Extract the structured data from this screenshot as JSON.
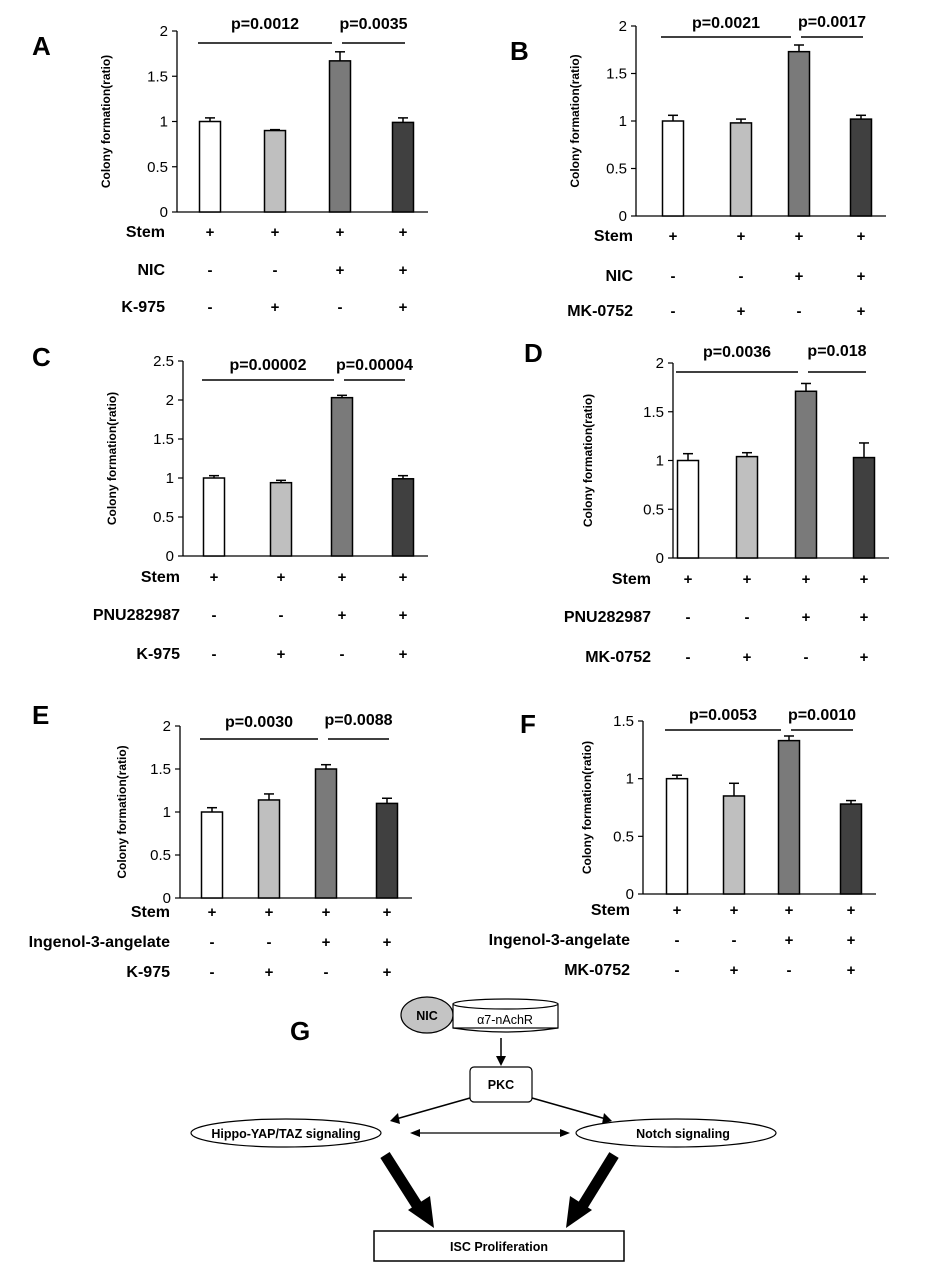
{
  "chart_data": [
    {
      "panel": "A",
      "type": "bar",
      "ylabel": "Colony formation(ratio)",
      "ylim": [
        0,
        2
      ],
      "yticks": [
        "0",
        "0.5",
        "1",
        "1.5",
        "2"
      ],
      "values": [
        1.0,
        0.9,
        1.67,
        0.99
      ],
      "errors": [
        0.04,
        0.01,
        0.1,
        0.05
      ],
      "bar_colors": [
        "#ffffff",
        "#bfbfbf",
        "#7a7a7a",
        "#404040"
      ],
      "pvalues": [
        "p=0.0012",
        "p=0.0035"
      ],
      "conditions": [
        {
          "label": "Stem",
          "signs": [
            "+",
            "+",
            "+",
            "+"
          ]
        },
        {
          "label": "NIC",
          "signs": [
            "-",
            "-",
            "+",
            "+"
          ]
        },
        {
          "label": "K-975",
          "signs": [
            "-",
            "+",
            "-",
            "+"
          ]
        }
      ]
    },
    {
      "panel": "B",
      "type": "bar",
      "ylabel": "Colony formation(ratio)",
      "ylim": [
        0,
        2
      ],
      "yticks": [
        "0",
        "0.5",
        "1",
        "1.5",
        "2"
      ],
      "values": [
        1.0,
        0.98,
        1.73,
        1.02
      ],
      "errors": [
        0.06,
        0.04,
        0.07,
        0.04
      ],
      "bar_colors": [
        "#ffffff",
        "#bfbfbf",
        "#7a7a7a",
        "#404040"
      ],
      "pvalues": [
        "p=0.0021",
        "p=0.0017"
      ],
      "conditions": [
        {
          "label": "Stem",
          "signs": [
            "+",
            "+",
            "+",
            "+"
          ]
        },
        {
          "label": "NIC",
          "signs": [
            "-",
            "-",
            "+",
            "+"
          ]
        },
        {
          "label": "MK-0752",
          "signs": [
            "-",
            "+",
            "-",
            "+"
          ]
        }
      ]
    },
    {
      "panel": "C",
      "type": "bar",
      "ylabel": "Colony formation(ratio)",
      "ylim": [
        0,
        2.5
      ],
      "yticks": [
        "0",
        "0.5",
        "1",
        "1.5",
        "2",
        "2.5"
      ],
      "values": [
        1.0,
        0.94,
        2.03,
        0.99
      ],
      "errors": [
        0.03,
        0.03,
        0.03,
        0.04
      ],
      "bar_colors": [
        "#ffffff",
        "#bfbfbf",
        "#7a7a7a",
        "#404040"
      ],
      "pvalues": [
        "p=0.00002",
        "p=0.00004"
      ],
      "conditions": [
        {
          "label": "Stem",
          "signs": [
            "+",
            "+",
            "+",
            "+"
          ]
        },
        {
          "label": "PNU282987",
          "signs": [
            "-",
            "-",
            "+",
            "+"
          ]
        },
        {
          "label": "K-975",
          "signs": [
            "-",
            "+",
            "-",
            "+"
          ]
        }
      ]
    },
    {
      "panel": "D",
      "type": "bar",
      "ylabel": "Colony formation(ratio)",
      "ylim": [
        0,
        2
      ],
      "yticks": [
        "0",
        "0.5",
        "1",
        "1.5",
        "2"
      ],
      "values": [
        1.0,
        1.04,
        1.71,
        1.03
      ],
      "errors": [
        0.07,
        0.04,
        0.08,
        0.15
      ],
      "bar_colors": [
        "#ffffff",
        "#bfbfbf",
        "#7a7a7a",
        "#404040"
      ],
      "pvalues": [
        "p=0.0036",
        "p=0.018"
      ],
      "conditions": [
        {
          "label": "Stem",
          "signs": [
            "+",
            "+",
            "+",
            "+"
          ]
        },
        {
          "label": "PNU282987",
          "signs": [
            "-",
            "-",
            "+",
            "+"
          ]
        },
        {
          "label": "MK-0752",
          "signs": [
            "-",
            "+",
            "-",
            "+"
          ]
        }
      ]
    },
    {
      "panel": "E",
      "type": "bar",
      "ylabel": "Colony formation(ratio)",
      "ylim": [
        0,
        2
      ],
      "yticks": [
        "0",
        "0.5",
        "1",
        "1.5",
        "2"
      ],
      "values": [
        1.0,
        1.14,
        1.5,
        1.1
      ],
      "errors": [
        0.05,
        0.07,
        0.05,
        0.06
      ],
      "bar_colors": [
        "#ffffff",
        "#bfbfbf",
        "#7a7a7a",
        "#404040"
      ],
      "pvalues": [
        "p=0.0030",
        "p=0.0088"
      ],
      "conditions": [
        {
          "label": "Stem",
          "signs": [
            "+",
            "+",
            "+",
            "+"
          ]
        },
        {
          "label": "Ingenol-3-angelate",
          "signs": [
            "-",
            "-",
            "+",
            "+"
          ]
        },
        {
          "label": "K-975",
          "signs": [
            "-",
            "+",
            "-",
            "+"
          ]
        }
      ]
    },
    {
      "panel": "F",
      "type": "bar",
      "ylabel": "Colony formation(ratio)",
      "ylim": [
        0,
        1.5
      ],
      "yticks": [
        "0",
        "0.5",
        "1",
        "1.5"
      ],
      "values": [
        1.0,
        0.85,
        1.33,
        0.78
      ],
      "errors": [
        0.03,
        0.11,
        0.04,
        0.03
      ],
      "bar_colors": [
        "#ffffff",
        "#bfbfbf",
        "#7a7a7a",
        "#404040"
      ],
      "pvalues": [
        "p=0.0053",
        "p=0.0010"
      ],
      "conditions": [
        {
          "label": "Stem",
          "signs": [
            "+",
            "+",
            "+",
            "+"
          ]
        },
        {
          "label": "Ingenol-3-angelate",
          "signs": [
            "-",
            "-",
            "+",
            "+"
          ]
        },
        {
          "label": "MK-0752",
          "signs": [
            "-",
            "+",
            "-",
            "+"
          ]
        }
      ]
    }
  ],
  "diagram": {
    "panel": "G",
    "nic": "NIC",
    "receptor": "α7-nAchR",
    "pkc": "PKC",
    "hippo": "Hippo-YAP/TAZ signaling",
    "notch": "Notch signaling",
    "isc": "ISC Proliferation"
  }
}
